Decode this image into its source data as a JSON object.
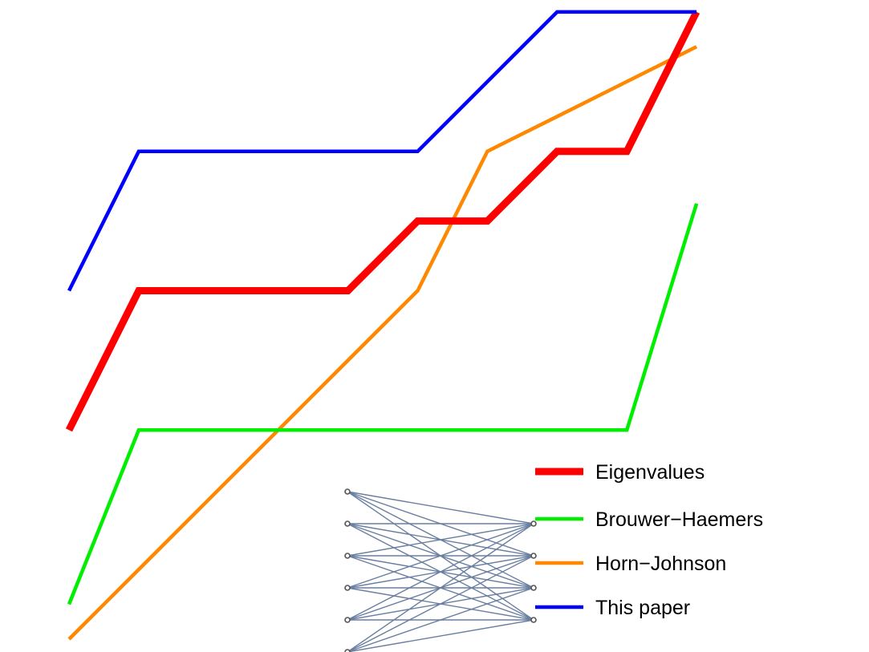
{
  "chart_data": {
    "type": "line",
    "title": "",
    "xlabel": "",
    "ylabel": "",
    "grid": false,
    "axes_visible": false,
    "legend_position": "bottom-right",
    "x": [
      0,
      1,
      2,
      3,
      4,
      5,
      6,
      7,
      8,
      9
    ],
    "series": [
      {
        "name": "Eigenvalues",
        "color": "#ff0000",
        "values": [
          3,
          5,
          5,
          5,
          5,
          6,
          6,
          7,
          7,
          9
        ]
      },
      {
        "name": "Brouwer-Haemers",
        "color": "#00ee00",
        "values": [
          0.5,
          3,
          3,
          3,
          3,
          3,
          3,
          3,
          3,
          6.25
        ]
      },
      {
        "name": "Horn-Johnson",
        "color": "#ff8800",
        "values": [
          0,
          1,
          2,
          3,
          4,
          5,
          7,
          7.5,
          8,
          8.5
        ]
      },
      {
        "name": "This paper",
        "color": "#0000ff",
        "values": [
          5,
          7,
          7,
          7,
          7,
          7,
          8,
          9,
          9,
          9
        ]
      }
    ],
    "legend": {
      "entries": [
        "Eigenvalues",
        "Brouwer−Haemers",
        "Horn−Johnson",
        "This paper"
      ]
    },
    "inset_graph": {
      "type": "complete-bipartite",
      "left_vertices": 6,
      "right_vertices": 4,
      "edge_color": "#6a7fa0",
      "vertex_color": "#555555"
    }
  }
}
